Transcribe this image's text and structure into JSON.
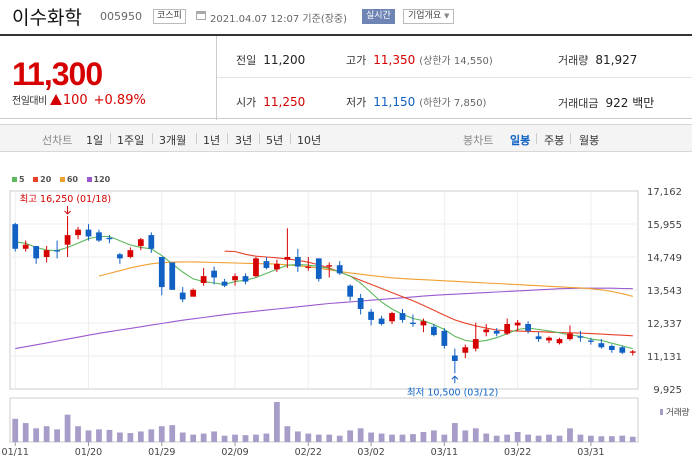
{
  "header": {
    "company_name": "이수화학",
    "code": "005950",
    "market": "코스피",
    "datetime": "2021.04.07 12:07 기준(장중)",
    "realtime_badge": "실시간",
    "company_info_button": "기업개요"
  },
  "price": {
    "current": "11,300",
    "change_label": "전일대비",
    "change": "100",
    "change_pct": "+0.89%",
    "prev_close_label": "전일",
    "prev_close": "11,200",
    "high_label": "고가",
    "high": "11,350",
    "upper_limit": "(상한가 14,550)",
    "volume_label": "거래량",
    "volume": "81,927",
    "open_label": "시가",
    "open": "11,250",
    "low_label": "저가",
    "low": "11,150",
    "lower_limit": "(하한가 7,850)",
    "trade_value_label": "거래대금",
    "trade_value": "922 백만"
  },
  "period_tabs": {
    "line_label": "선차트",
    "line_items": [
      "1일",
      "1주일",
      "3개월",
      "1년",
      "3년",
      "5년",
      "10년"
    ],
    "candle_label": "봉차트",
    "candle_items": [
      "일봉",
      "주봉",
      "월봉"
    ],
    "candle_selected": 0
  },
  "colors": {
    "up": "#d60000",
    "down": "#1061c3",
    "ma5": "#5cb85c",
    "ma20": "#e8412a",
    "ma60": "#f0a030",
    "ma120": "#9b59d0",
    "volume": "#a89cc8"
  },
  "chart_data": {
    "type": "candlestick",
    "legend": [
      "5",
      "20",
      "60",
      "120"
    ],
    "y_ticks": [
      "17,162",
      "15,955",
      "14,749",
      "13,543",
      "12,337",
      "11,131",
      "9,925"
    ],
    "ylim": [
      9925,
      17162
    ],
    "x_ticks": [
      "01/11",
      "01/20",
      "01/29",
      "02/09",
      "02/22",
      "03/02",
      "03/11",
      "03/22",
      "03/31"
    ],
    "x_tick_index": [
      0,
      7,
      14,
      21,
      28,
      34,
      41,
      48,
      55
    ],
    "high_annotation": "최고 16,250 (01/18)",
    "high_annotation_index": 5,
    "high_annotation_value": 16250,
    "low_annotation": "최저 10,500 (03/12)",
    "low_annotation_index": 42,
    "low_annotation_value": 10500,
    "volume_label": "거래량",
    "candles": [
      [
        15950,
        16000,
        14950,
        15050
      ],
      [
        15050,
        15350,
        14950,
        15200
      ],
      [
        15150,
        15150,
        14500,
        14700
      ],
      [
        14750,
        15150,
        14550,
        15000
      ],
      [
        15000,
        15350,
        14700,
        14950
      ],
      [
        15200,
        16250,
        14750,
        15550
      ],
      [
        15550,
        15850,
        15400,
        15750
      ],
      [
        15750,
        15950,
        15350,
        15500
      ],
      [
        15650,
        15750,
        15300,
        15350
      ],
      [
        15450,
        15550,
        15250,
        15400
      ],
      [
        14850,
        14900,
        14500,
        14700
      ],
      [
        14750,
        15100,
        14700,
        15000
      ],
      [
        15150,
        15450,
        15000,
        15400
      ],
      [
        15550,
        15650,
        14900,
        15050
      ],
      [
        14750,
        14750,
        13350,
        13650
      ],
      [
        14550,
        14550,
        13550,
        13550
      ],
      [
        13450,
        13650,
        13100,
        13200
      ],
      [
        13300,
        13600,
        13300,
        13550
      ],
      [
        13800,
        14350,
        13700,
        14050
      ],
      [
        14250,
        14400,
        13750,
        14000
      ],
      [
        13850,
        13950,
        13650,
        13700
      ],
      [
        13900,
        14150,
        13700,
        14050
      ],
      [
        14050,
        14150,
        13750,
        13850
      ],
      [
        14050,
        14750,
        14000,
        14700
      ],
      [
        14600,
        14750,
        14300,
        14350
      ],
      [
        14300,
        14650,
        14200,
        14500
      ],
      [
        14650,
        15800,
        14350,
        14750
      ],
      [
        14750,
        15050,
        14200,
        14400
      ],
      [
        14350,
        14750,
        14250,
        14400
      ],
      [
        14700,
        14700,
        13850,
        13950
      ],
      [
        14400,
        14550,
        14000,
        14450
      ],
      [
        14450,
        14600,
        14100,
        14150
      ],
      [
        13700,
        13750,
        13150,
        13300
      ],
      [
        13250,
        13400,
        12650,
        12850
      ],
      [
        12750,
        12850,
        12250,
        12450
      ],
      [
        12500,
        12600,
        12250,
        12300
      ],
      [
        12400,
        12750,
        12300,
        12700
      ],
      [
        12700,
        12850,
        12350,
        12450
      ],
      [
        12350,
        12650,
        12200,
        12300
      ],
      [
        12250,
        12500,
        12000,
        12400
      ],
      [
        12200,
        12300,
        11850,
        11900
      ],
      [
        12050,
        12150,
        11400,
        11500
      ],
      [
        11150,
        11400,
        10500,
        10950
      ],
      [
        11250,
        11550,
        11050,
        11450
      ],
      [
        11400,
        12350,
        11300,
        11750
      ],
      [
        12000,
        12300,
        11850,
        12100
      ],
      [
        12050,
        12150,
        11850,
        11950
      ],
      [
        11950,
        12500,
        11900,
        12300
      ],
      [
        12250,
        12450,
        12050,
        12350
      ],
      [
        12300,
        12400,
        11950,
        12050
      ],
      [
        11850,
        12000,
        11650,
        11750
      ],
      [
        11700,
        11850,
        11600,
        11800
      ],
      [
        11600,
        11800,
        11550,
        11750
      ],
      [
        11750,
        12250,
        11700,
        11950
      ],
      [
        11850,
        12050,
        11650,
        11800
      ],
      [
        11700,
        11800,
        11550,
        11650
      ],
      [
        11600,
        11750,
        11400,
        11450
      ],
      [
        11500,
        11550,
        11250,
        11350
      ],
      [
        11450,
        11500,
        11200,
        11250
      ],
      [
        11250,
        11350,
        11150,
        11300
      ]
    ],
    "volume": [
      220,
      180,
      130,
      150,
      120,
      260,
      150,
      110,
      120,
      115,
      90,
      85,
      100,
      120,
      150,
      160,
      90,
      70,
      80,
      100,
      60,
      70,
      65,
      70,
      80,
      380,
      150,
      100,
      80,
      70,
      70,
      60,
      110,
      130,
      90,
      80,
      70,
      70,
      75,
      95,
      110,
      70,
      180,
      110,
      130,
      80,
      60,
      70,
      95,
      70,
      60,
      70,
      60,
      130,
      70,
      60,
      55,
      55,
      60,
      50
    ],
    "ma5": [
      15300,
      15250,
      15100,
      15000,
      14980,
      15100,
      15250,
      15420,
      15500,
      15500,
      15340,
      15190,
      15100,
      15050,
      14800,
      14500,
      14200,
      13950,
      13850,
      13800,
      13750,
      13850,
      13900,
      14000,
      14150,
      14300,
      14450,
      14480,
      14450,
      14400,
      14330,
      14200,
      14050,
      13800,
      13450,
      13100,
      12850,
      12650,
      12500,
      12420,
      12280,
      12100,
      11850,
      11700,
      11650,
      11700,
      11800,
      11950,
      12100,
      12150,
      12100,
      12050,
      11980,
      11900,
      11850,
      11750,
      11700,
      11600,
      11500,
      11400
    ],
    "ma20": [
      null,
      null,
      null,
      null,
      null,
      null,
      null,
      null,
      null,
      null,
      null,
      null,
      null,
      null,
      null,
      null,
      null,
      null,
      null,
      null,
      14960,
      14950,
      14850,
      14780,
      14750,
      14720,
      14680,
      14630,
      14560,
      14460,
      14350,
      14200,
      14050,
      13900,
      13750,
      13600,
      13450,
      13300,
      13150,
      12980,
      12800,
      12620,
      12450,
      12330,
      12230,
      12150,
      12080,
      12050,
      12040,
      12030,
      12020,
      12000,
      11990,
      11980,
      11970,
      11950,
      11930,
      11910,
      11890,
      11870
    ],
    "ma60": [
      null,
      null,
      null,
      null,
      null,
      null,
      null,
      null,
      14050,
      14150,
      14250,
      14350,
      14430,
      14500,
      14540,
      14560,
      14570,
      14570,
      14560,
      14550,
      14540,
      14530,
      14520,
      14510,
      14500,
      14490,
      14460,
      14430,
      14390,
      14340,
      14280,
      14220,
      14170,
      14120,
      14070,
      14030,
      13990,
      13960,
      13940,
      13920,
      13900,
      13880,
      13860,
      13840,
      13820,
      13800,
      13780,
      13760,
      13740,
      13720,
      13700,
      13680,
      13660,
      13640,
      13620,
      13590,
      13550,
      13490,
      13410,
      13310
    ],
    "ma120": [
      11400,
      11470,
      11540,
      11610,
      11680,
      11750,
      11820,
      11890,
      11960,
      12020,
      12080,
      12140,
      12200,
      12260,
      12320,
      12380,
      12440,
      12490,
      12540,
      12590,
      12640,
      12690,
      12730,
      12770,
      12810,
      12850,
      12890,
      12930,
      12970,
      13010,
      13050,
      13080,
      13110,
      13140,
      13170,
      13200,
      13230,
      13260,
      13290,
      13320,
      13350,
      13370,
      13390,
      13410,
      13430,
      13450,
      13470,
      13490,
      13510,
      13530,
      13550,
      13570,
      13590,
      13600,
      13610,
      13610,
      13610,
      13610,
      13600,
      13590
    ]
  }
}
